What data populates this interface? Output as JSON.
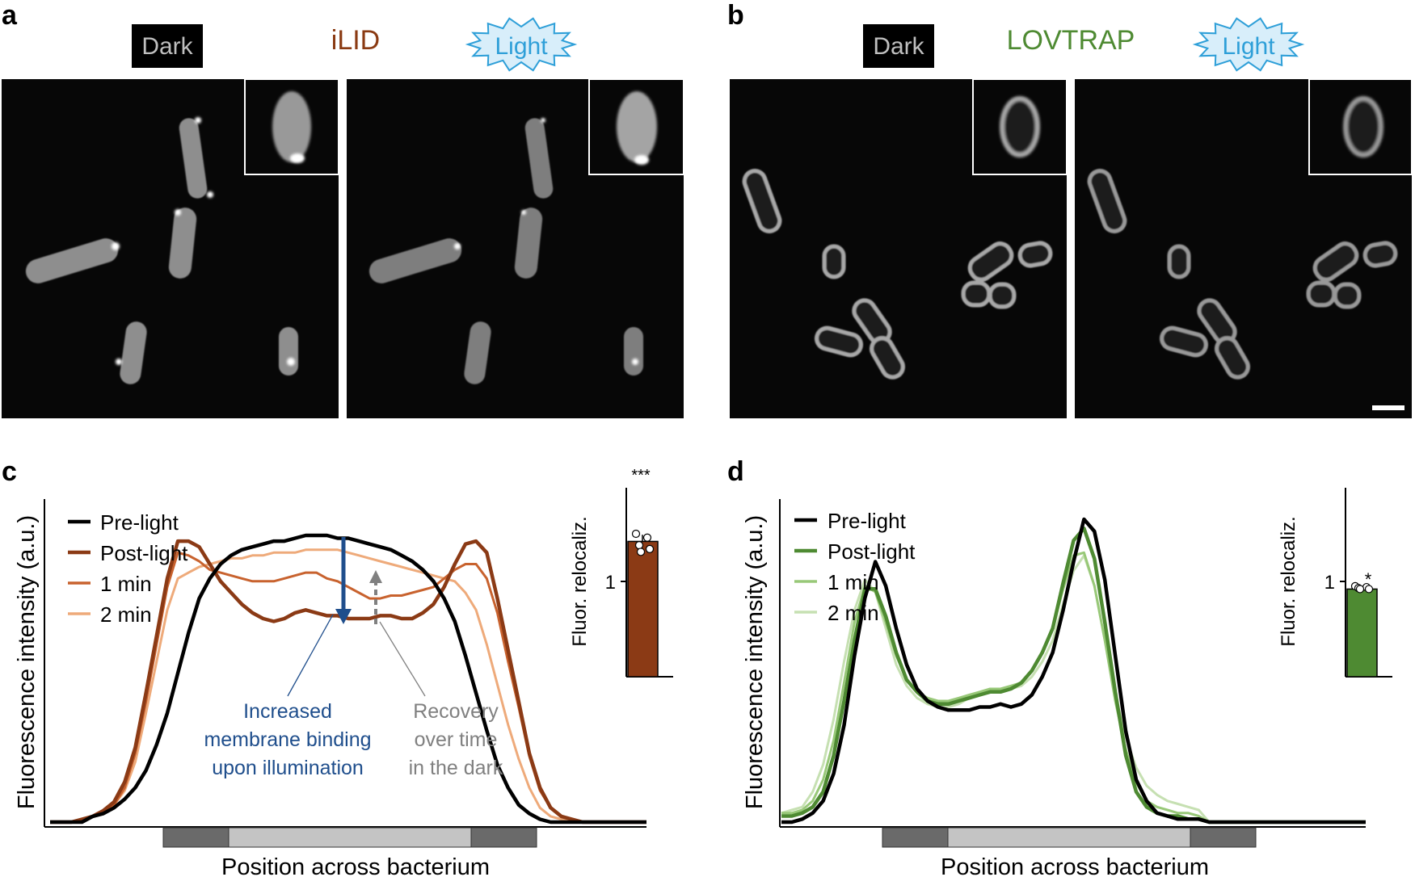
{
  "panels": {
    "a": {
      "letter": "a",
      "title": "iLID",
      "title_color": "#8a3a12",
      "dark_label": "Dark",
      "light_label": "Light"
    },
    "b": {
      "letter": "b",
      "title": "LOVTRAP",
      "title_color": "#4e8a32",
      "dark_label": "Dark",
      "light_label": "Light"
    },
    "c": {
      "letter": "c",
      "ylabel": "Fluorescence intensity (a.u.)",
      "xlabel": "Position across bacterium",
      "legend": [
        "Pre-light",
        "Post-light",
        "1 min",
        "2 min"
      ],
      "annotation_binding": [
        "Increased",
        "membrane binding",
        "upon illumination"
      ],
      "annotation_recovery": [
        "Recovery",
        "over time",
        "in the dark"
      ],
      "inset_ylabel": "Fluor. relocaliz.",
      "inset_tick": "1",
      "inset_significance": "***"
    },
    "d": {
      "letter": "d",
      "ylabel": "Fluorescence intensity (a.u.)",
      "xlabel": "Position across bacterium",
      "legend": [
        "Pre-light",
        "Post-light",
        "1 min",
        "2 min"
      ],
      "inset_ylabel": "Fluor. relocaliz.",
      "inset_tick": "1",
      "inset_significance": "*"
    }
  },
  "colors": {
    "pre_light": "#000000",
    "ilid_post": "#8b3a15",
    "ilid_1min": "#c8622e",
    "ilid_2min": "#eeaa7a",
    "lov_post": "#4e8a32",
    "lov_1min": "#98c878",
    "lov_2min": "#c6e0b2",
    "annotation_blue": "#1f4e8c",
    "annotation_gray": "#808080",
    "light_burst_fill": "#d8eefa",
    "light_burst_text": "#2e9fd8"
  },
  "chart_data": [
    {
      "panel": "c",
      "type": "line",
      "title": "",
      "xlabel": "Position across bacterium",
      "ylabel": "Fluorescence intensity (a.u.)",
      "x": [
        0,
        1,
        2,
        3,
        4,
        5,
        6,
        7,
        8,
        9,
        10,
        11,
        12,
        13,
        14,
        15,
        16,
        17,
        18,
        19,
        20,
        21,
        22,
        23,
        24,
        25,
        26,
        27,
        28,
        29,
        30,
        31,
        32,
        33,
        34,
        35,
        36,
        37,
        38,
        39,
        40,
        41,
        42,
        43,
        44,
        45,
        46,
        47,
        48,
        49,
        50,
        51,
        52,
        53,
        54,
        55,
        56
      ],
      "series": [
        {
          "name": "Pre-light",
          "values": [
            0.0,
            0.0,
            0.0,
            0.0,
            0.02,
            0.03,
            0.05,
            0.08,
            0.12,
            0.18,
            0.27,
            0.38,
            0.52,
            0.66,
            0.78,
            0.85,
            0.9,
            0.93,
            0.95,
            0.96,
            0.97,
            0.98,
            0.98,
            0.99,
            1.0,
            1.0,
            1.0,
            0.99,
            0.99,
            0.98,
            0.97,
            0.96,
            0.95,
            0.93,
            0.91,
            0.88,
            0.84,
            0.78,
            0.7,
            0.58,
            0.45,
            0.32,
            0.2,
            0.12,
            0.06,
            0.03,
            0.01,
            0.0,
            0.0,
            0.0,
            0.0,
            0.0,
            0.0,
            0.0,
            0.0,
            0.0,
            0.0
          ]
        },
        {
          "name": "Post-light",
          "values": [
            0.0,
            0.0,
            0.0,
            0.01,
            0.02,
            0.04,
            0.07,
            0.14,
            0.26,
            0.45,
            0.65,
            0.85,
            0.98,
            0.98,
            0.96,
            0.9,
            0.84,
            0.8,
            0.76,
            0.73,
            0.71,
            0.7,
            0.71,
            0.73,
            0.74,
            0.73,
            0.72,
            0.72,
            0.71,
            0.71,
            0.71,
            0.72,
            0.72,
            0.71,
            0.71,
            0.73,
            0.76,
            0.82,
            0.9,
            0.97,
            0.98,
            0.94,
            0.78,
            0.6,
            0.42,
            0.24,
            0.12,
            0.05,
            0.02,
            0.01,
            0.0,
            0.0,
            0.0,
            0.0,
            0.0,
            0.0,
            0.0
          ]
        },
        {
          "name": "1 min",
          "values": [
            0.0,
            0.0,
            0.0,
            0.01,
            0.02,
            0.04,
            0.06,
            0.12,
            0.24,
            0.42,
            0.62,
            0.82,
            0.94,
            0.93,
            0.91,
            0.88,
            0.87,
            0.86,
            0.85,
            0.84,
            0.84,
            0.84,
            0.85,
            0.86,
            0.87,
            0.87,
            0.85,
            0.84,
            0.82,
            0.8,
            0.78,
            0.78,
            0.79,
            0.79,
            0.8,
            0.81,
            0.82,
            0.85,
            0.88,
            0.9,
            0.9,
            0.85,
            0.73,
            0.56,
            0.4,
            0.23,
            0.11,
            0.05,
            0.02,
            0.01,
            0.0,
            0.0,
            0.0,
            0.0,
            0.0,
            0.0,
            0.0
          ]
        },
        {
          "name": "2 min",
          "values": [
            0.0,
            0.0,
            0.0,
            0.01,
            0.02,
            0.04,
            0.06,
            0.11,
            0.21,
            0.38,
            0.56,
            0.74,
            0.85,
            0.87,
            0.89,
            0.9,
            0.91,
            0.92,
            0.92,
            0.93,
            0.93,
            0.94,
            0.94,
            0.94,
            0.95,
            0.95,
            0.95,
            0.95,
            0.94,
            0.93,
            0.92,
            0.91,
            0.9,
            0.89,
            0.88,
            0.87,
            0.86,
            0.85,
            0.84,
            0.8,
            0.74,
            0.62,
            0.48,
            0.34,
            0.22,
            0.12,
            0.05,
            0.02,
            0.01,
            0.0,
            0.0,
            0.0,
            0.0,
            0.0,
            0.0,
            0.0,
            0.0
          ]
        }
      ],
      "inset": {
        "type": "bar",
        "ylabel": "Fluor. relocaliz.",
        "ytick": 1,
        "ylim": [
          0,
          1.6
        ],
        "bar_value": 1.42,
        "error": 0.07,
        "points": [
          1.5,
          1.46,
          1.38,
          1.34,
          1.31
        ],
        "significance": "***"
      },
      "grid": false,
      "legend_position": "top-left"
    },
    {
      "panel": "d",
      "type": "line",
      "title": "",
      "xlabel": "Position across bacterium",
      "ylabel": "Fluorescence intensity (a.u.)",
      "x": [
        0,
        1,
        2,
        3,
        4,
        5,
        6,
        7,
        8,
        9,
        10,
        11,
        12,
        13,
        14,
        15,
        16,
        17,
        18,
        19,
        20,
        21,
        22,
        23,
        24,
        25,
        26,
        27,
        28,
        29,
        30,
        31,
        32,
        33,
        34,
        35,
        36,
        37,
        38,
        39,
        40,
        41,
        42,
        43,
        44,
        45,
        46,
        47,
        48,
        49,
        50,
        51,
        52,
        53,
        54,
        55,
        56
      ],
      "series": [
        {
          "name": "Pre-light",
          "values": [
            0.0,
            0.0,
            0.01,
            0.03,
            0.07,
            0.16,
            0.32,
            0.55,
            0.74,
            0.86,
            0.78,
            0.64,
            0.52,
            0.44,
            0.4,
            0.38,
            0.37,
            0.37,
            0.37,
            0.38,
            0.38,
            0.39,
            0.38,
            0.39,
            0.42,
            0.48,
            0.56,
            0.7,
            0.86,
            1.0,
            0.96,
            0.8,
            0.55,
            0.3,
            0.14,
            0.07,
            0.03,
            0.02,
            0.01,
            0.01,
            0.01,
            0.0,
            0.0,
            0.0,
            0.0,
            0.0,
            0.0,
            0.0,
            0.0,
            0.0,
            0.0,
            0.0,
            0.0,
            0.0,
            0.0,
            0.0,
            0.0
          ]
        },
        {
          "name": "Post-light",
          "values": [
            0.02,
            0.02,
            0.03,
            0.05,
            0.1,
            0.22,
            0.4,
            0.6,
            0.77,
            0.77,
            0.68,
            0.56,
            0.47,
            0.43,
            0.4,
            0.39,
            0.39,
            0.4,
            0.41,
            0.42,
            0.43,
            0.43,
            0.44,
            0.46,
            0.5,
            0.56,
            0.64,
            0.79,
            0.93,
            0.97,
            0.87,
            0.66,
            0.43,
            0.22,
            0.1,
            0.05,
            0.03,
            0.02,
            0.02,
            0.01,
            0.01,
            0.0,
            0.0,
            0.0,
            0.0,
            0.0,
            0.0,
            0.0,
            0.0,
            0.0,
            0.0,
            0.0,
            0.0,
            0.0,
            0.0,
            0.0,
            0.0
          ]
        },
        {
          "name": "1 min",
          "values": [
            0.03,
            0.03,
            0.04,
            0.07,
            0.14,
            0.27,
            0.46,
            0.66,
            0.78,
            0.76,
            0.66,
            0.55,
            0.47,
            0.43,
            0.41,
            0.4,
            0.4,
            0.41,
            0.42,
            0.43,
            0.44,
            0.44,
            0.45,
            0.46,
            0.5,
            0.56,
            0.64,
            0.77,
            0.88,
            0.89,
            0.78,
            0.6,
            0.4,
            0.24,
            0.13,
            0.07,
            0.05,
            0.04,
            0.03,
            0.03,
            0.02,
            0.0,
            0.0,
            0.0,
            0.0,
            0.0,
            0.0,
            0.0,
            0.0,
            0.0,
            0.0,
            0.0,
            0.0,
            0.0,
            0.0,
            0.0,
            0.0
          ]
        },
        {
          "name": "2 min",
          "values": [
            0.03,
            0.04,
            0.05,
            0.1,
            0.19,
            0.34,
            0.53,
            0.7,
            0.8,
            0.76,
            0.64,
            0.52,
            0.45,
            0.41,
            0.39,
            0.38,
            0.38,
            0.39,
            0.41,
            0.42,
            0.43,
            0.44,
            0.44,
            0.45,
            0.48,
            0.53,
            0.6,
            0.72,
            0.83,
            0.88,
            0.78,
            0.6,
            0.42,
            0.28,
            0.18,
            0.12,
            0.09,
            0.07,
            0.06,
            0.05,
            0.04,
            0.0,
            0.0,
            0.0,
            0.0,
            0.0,
            0.0,
            0.0,
            0.0,
            0.0,
            0.0,
            0.0,
            0.0,
            0.0,
            0.0,
            0.0,
            0.0
          ]
        }
      ],
      "inset": {
        "type": "bar",
        "ylabel": "Fluor. relocaliz.",
        "ytick": 1,
        "ylim": [
          0,
          1.6
        ],
        "bar_value": 0.92,
        "error": 0.02,
        "points": [
          0.95,
          0.94,
          0.93,
          0.92,
          0.92
        ],
        "significance": "*"
      },
      "grid": false,
      "legend_position": "top-left"
    }
  ]
}
